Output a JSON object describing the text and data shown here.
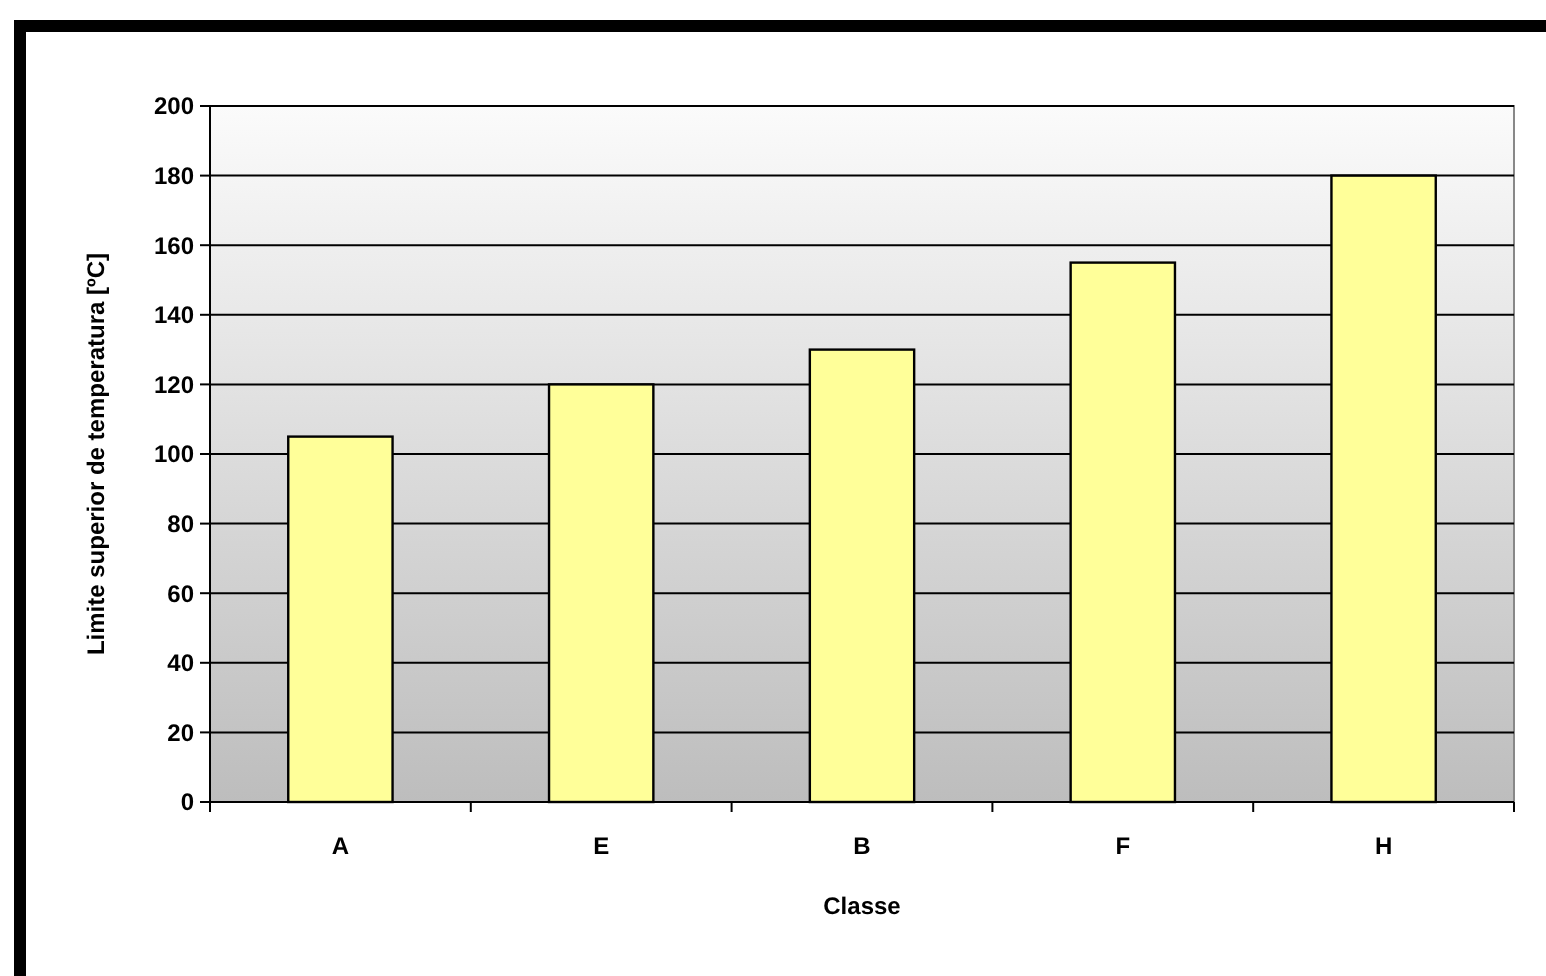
{
  "chart_data": {
    "type": "bar",
    "xlabel": "Classe",
    "ylabel": "Limite superior de temperatura [ºC]",
    "categories": [
      "A",
      "E",
      "B",
      "F",
      "H"
    ],
    "values": [
      105,
      120,
      130,
      155,
      180
    ],
    "color": "#ffff99",
    "ylim": [
      0,
      200
    ],
    "yticks": [
      0,
      20,
      40,
      60,
      80,
      100,
      120,
      140,
      160,
      180,
      200
    ],
    "grid": "y"
  }
}
